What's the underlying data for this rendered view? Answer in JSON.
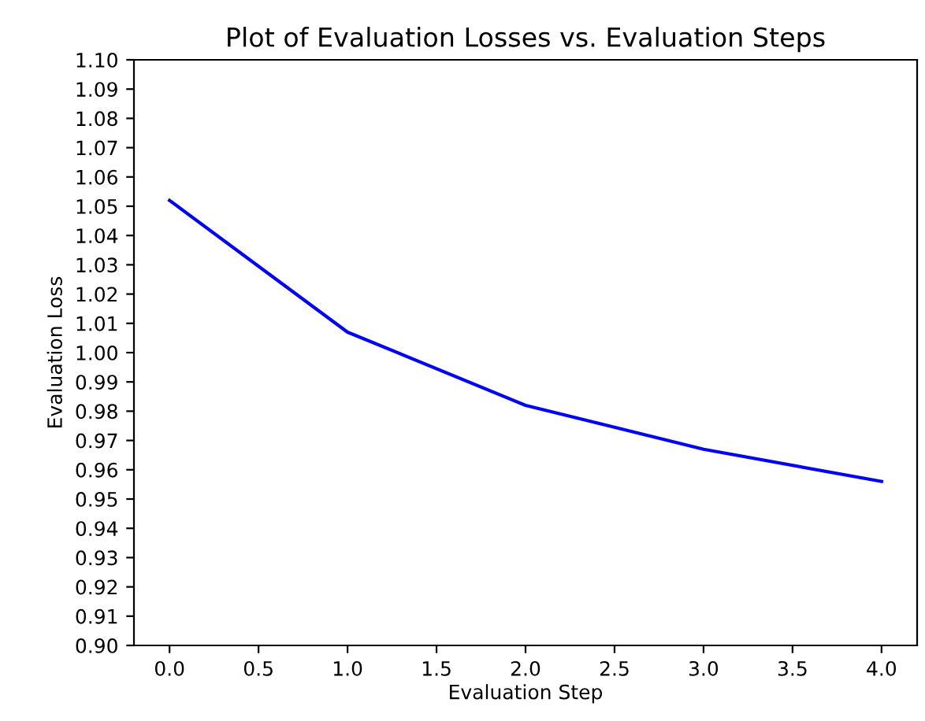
{
  "chart_data": {
    "type": "line",
    "title": "Plot of Evaluation Losses vs. Evaluation Steps",
    "xlabel": "Evaluation Step",
    "ylabel": "Evaluation Loss",
    "x": [
      0,
      1,
      2,
      3,
      4
    ],
    "series": [
      {
        "color": "#0000ff",
        "values": [
          1.052,
          1.007,
          0.982,
          0.967,
          0.956
        ]
      }
    ],
    "xlim": [
      -0.2,
      4.2
    ],
    "xticks": [
      {
        "value": 0,
        "label": "0.0"
      },
      {
        "value": 0.5,
        "label": "0.5"
      },
      {
        "value": 1,
        "label": "1.0"
      },
      {
        "value": 1.5,
        "label": "1.5"
      },
      {
        "value": 2,
        "label": "2.0"
      },
      {
        "value": 2.5,
        "label": "2.5"
      },
      {
        "value": 3,
        "label": "3.0"
      },
      {
        "value": 3.5,
        "label": "3.5"
      },
      {
        "value": 4,
        "label": "4.0"
      }
    ],
    "ylim": [
      0.9,
      1.1
    ],
    "yticks": [
      {
        "value": 0.9,
        "label": "0.90"
      },
      {
        "value": 0.91,
        "label": "0.91"
      },
      {
        "value": 0.92,
        "label": "0.92"
      },
      {
        "value": 0.93,
        "label": "0.93"
      },
      {
        "value": 0.94,
        "label": "0.94"
      },
      {
        "value": 0.95,
        "label": "0.95"
      },
      {
        "value": 0.96,
        "label": "0.96"
      },
      {
        "value": 0.97,
        "label": "0.97"
      },
      {
        "value": 0.98,
        "label": "0.98"
      },
      {
        "value": 0.99,
        "label": "0.99"
      },
      {
        "value": 1.0,
        "label": "1.00"
      },
      {
        "value": 1.01,
        "label": "1.01"
      },
      {
        "value": 1.02,
        "label": "1.02"
      },
      {
        "value": 1.03,
        "label": "1.03"
      },
      {
        "value": 1.04,
        "label": "1.04"
      },
      {
        "value": 1.05,
        "label": "1.05"
      },
      {
        "value": 1.06,
        "label": "1.06"
      },
      {
        "value": 1.07,
        "label": "1.07"
      },
      {
        "value": 1.08,
        "label": "1.08"
      },
      {
        "value": 1.09,
        "label": "1.09"
      },
      {
        "value": 1.1,
        "label": "1.10"
      }
    ]
  }
}
